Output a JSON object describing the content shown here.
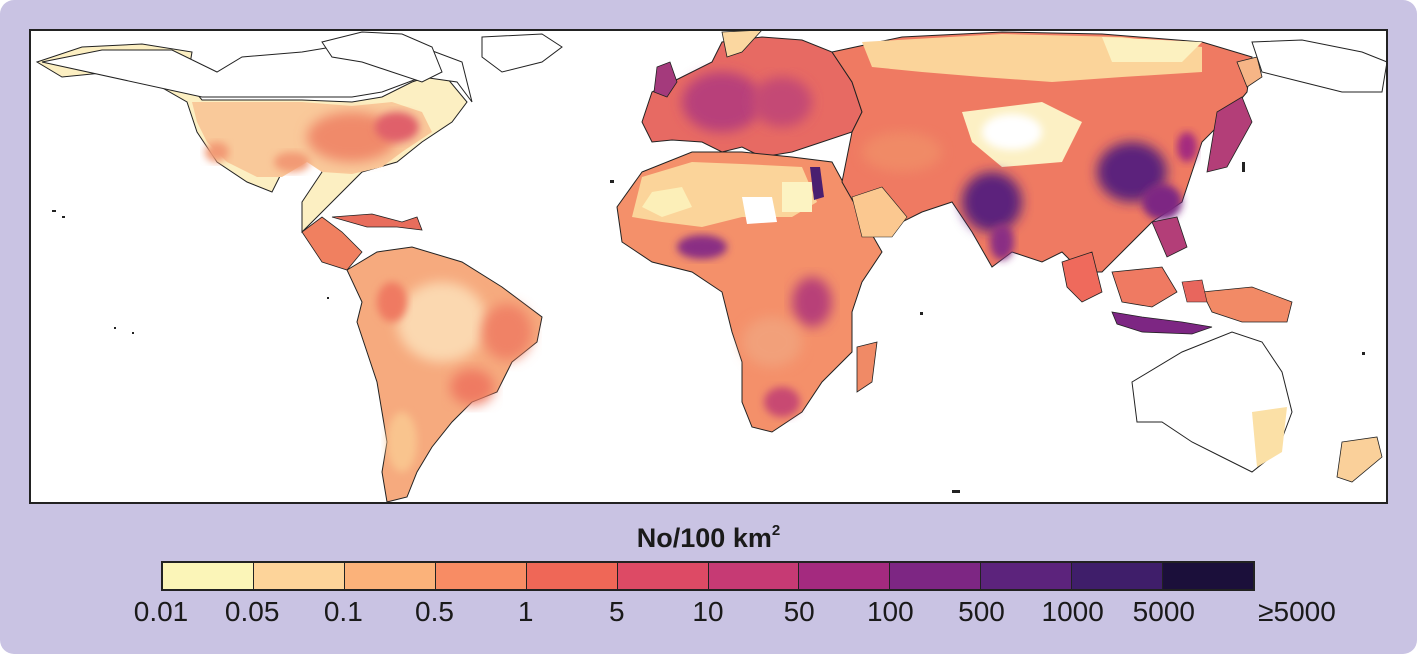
{
  "legend": {
    "title": "No/100 km",
    "title_superscript": "2",
    "bins": [
      {
        "color": "#fbf5b8"
      },
      {
        "color": "#fdd49a"
      },
      {
        "color": "#fbb27a"
      },
      {
        "color": "#f88c64"
      },
      {
        "color": "#ef6757"
      },
      {
        "color": "#dd4a65"
      },
      {
        "color": "#c63a74"
      },
      {
        "color": "#a42a7f"
      },
      {
        "color": "#7d2683"
      },
      {
        "color": "#5c237c"
      },
      {
        "color": "#3f1e6a"
      },
      {
        "color": "#1b0f3a"
      }
    ],
    "tick_labels": [
      "0.01",
      "0.05",
      "0.1",
      "0.5",
      "1",
      "5",
      "10",
      "50",
      "100",
      "500",
      "1000",
      "5000",
      "≥5000"
    ]
  },
  "colors": {
    "background": "#c9c3e3",
    "map_background": "#ffffff",
    "coastline": "#222222"
  }
}
